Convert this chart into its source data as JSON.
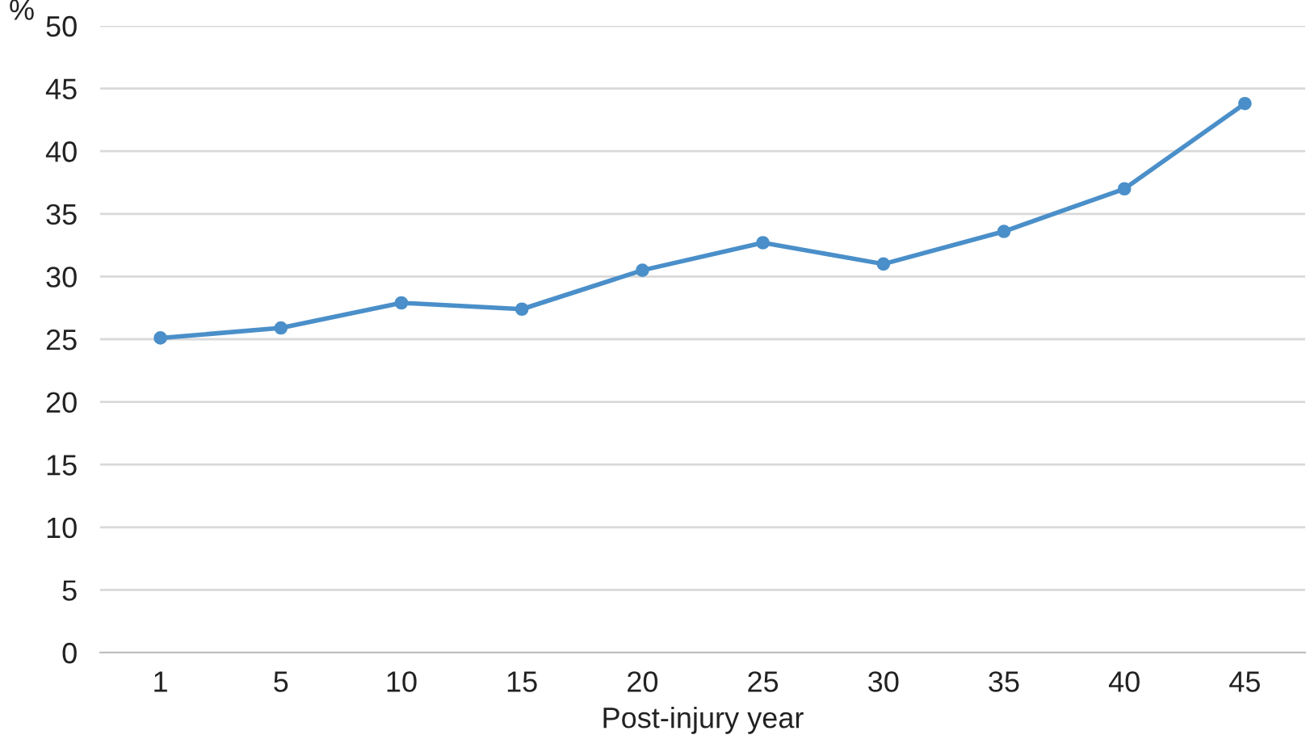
{
  "chart_data": {
    "type": "line",
    "xlabel": "Post-injury year",
    "ylabel": "%",
    "categories": [
      "1",
      "5",
      "10",
      "15",
      "20",
      "25",
      "30",
      "35",
      "40",
      "45"
    ],
    "series": [
      {
        "color": "#4a8fc9",
        "values": [
          25.1,
          25.9,
          27.9,
          27.4,
          30.5,
          32.7,
          31.0,
          33.6,
          37.0,
          43.8
        ]
      }
    ],
    "ylim": [
      0,
      50
    ],
    "yticks": [
      0,
      5,
      10,
      15,
      20,
      25,
      30,
      35,
      40,
      45,
      50
    ],
    "grid": "y",
    "marker": "circle",
    "line_style": "solid"
  }
}
